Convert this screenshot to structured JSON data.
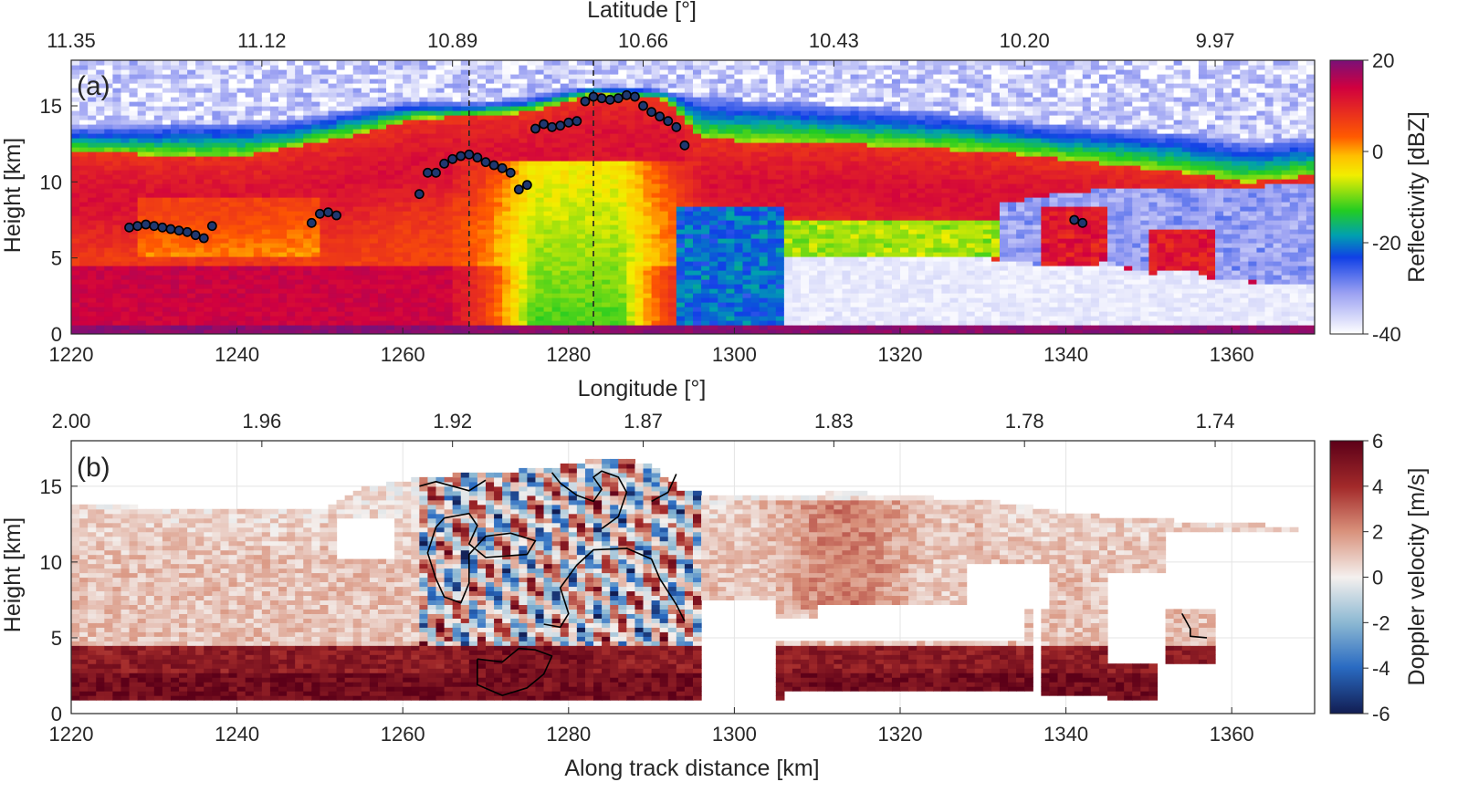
{
  "chart_data": [
    {
      "type": "heatmap",
      "panel_label": "(a)",
      "xlabel": "Longitude [°]",
      "ylabel": "Height [km]",
      "top_axis_label": "Latitude [°]",
      "xlim": [
        1220,
        1370
      ],
      "ylim": [
        0,
        18
      ],
      "x_ticks": [
        1220,
        1240,
        1260,
        1280,
        1300,
        1320,
        1340,
        1360
      ],
      "y_ticks": [
        0,
        5,
        10,
        15
      ],
      "top_ticks": [
        {
          "at": 1220,
          "label": "11.35"
        },
        {
          "at": 1243,
          "label": "11.12"
        },
        {
          "at": 1266,
          "label": "10.89"
        },
        {
          "at": 1289,
          "label": "10.66"
        },
        {
          "at": 1312,
          "label": "10.43"
        },
        {
          "at": 1335,
          "label": "10.20"
        },
        {
          "at": 1358,
          "label": "9.97"
        }
      ],
      "colorbar": {
        "label": "Reflectivity [dBZ]",
        "range": [
          -40,
          20
        ],
        "ticks": [
          20,
          0,
          -20,
          -40
        ]
      },
      "vertical_lines_x": [
        1268,
        1283
      ],
      "points": [
        {
          "x": 1227,
          "y": 7.0
        },
        {
          "x": 1228,
          "y": 7.1
        },
        {
          "x": 1229,
          "y": 7.2
        },
        {
          "x": 1230,
          "y": 7.1
        },
        {
          "x": 1231,
          "y": 7.0
        },
        {
          "x": 1232,
          "y": 6.9
        },
        {
          "x": 1233,
          "y": 6.8
        },
        {
          "x": 1234,
          "y": 6.7
        },
        {
          "x": 1235,
          "y": 6.5
        },
        {
          "x": 1236,
          "y": 6.3
        },
        {
          "x": 1237,
          "y": 7.1
        },
        {
          "x": 1249,
          "y": 7.3
        },
        {
          "x": 1250,
          "y": 7.9
        },
        {
          "x": 1251,
          "y": 8.0
        },
        {
          "x": 1252,
          "y": 7.8
        },
        {
          "x": 1262,
          "y": 9.2
        },
        {
          "x": 1263,
          "y": 10.6
        },
        {
          "x": 1264,
          "y": 10.6
        },
        {
          "x": 1265,
          "y": 11.2
        },
        {
          "x": 1266,
          "y": 11.5
        },
        {
          "x": 1267,
          "y": 11.7
        },
        {
          "x": 1268,
          "y": 11.8
        },
        {
          "x": 1269,
          "y": 11.6
        },
        {
          "x": 1270,
          "y": 11.3
        },
        {
          "x": 1271,
          "y": 11.1
        },
        {
          "x": 1272,
          "y": 10.9
        },
        {
          "x": 1273,
          "y": 10.6
        },
        {
          "x": 1274,
          "y": 9.5
        },
        {
          "x": 1275,
          "y": 9.8
        },
        {
          "x": 1276,
          "y": 13.5
        },
        {
          "x": 1277,
          "y": 13.8
        },
        {
          "x": 1278,
          "y": 13.6
        },
        {
          "x": 1279,
          "y": 13.7
        },
        {
          "x": 1280,
          "y": 13.9
        },
        {
          "x": 1281,
          "y": 14.0
        },
        {
          "x": 1282,
          "y": 15.3
        },
        {
          "x": 1283,
          "y": 15.6
        },
        {
          "x": 1284,
          "y": 15.5
        },
        {
          "x": 1285,
          "y": 15.4
        },
        {
          "x": 1286,
          "y": 15.5
        },
        {
          "x": 1287,
          "y": 15.7
        },
        {
          "x": 1288,
          "y": 15.6
        },
        {
          "x": 1289,
          "y": 15.0
        },
        {
          "x": 1290,
          "y": 14.6
        },
        {
          "x": 1291,
          "y": 14.3
        },
        {
          "x": 1292,
          "y": 14.0
        },
        {
          "x": 1293,
          "y": 13.6
        },
        {
          "x": 1294,
          "y": 12.4
        },
        {
          "x": 1341,
          "y": 7.5
        },
        {
          "x": 1342,
          "y": 7.3
        }
      ]
    },
    {
      "type": "heatmap",
      "panel_label": "(b)",
      "xlabel": "Along track distance [km]",
      "ylabel": "Height [km]",
      "xlim": [
        1220,
        1370
      ],
      "ylim": [
        0,
        18
      ],
      "x_ticks": [
        1220,
        1240,
        1260,
        1280,
        1300,
        1320,
        1340,
        1360
      ],
      "y_ticks": [
        0,
        5,
        10,
        15
      ],
      "top_ticks": [
        {
          "at": 1220,
          "label": "2.00"
        },
        {
          "at": 1243,
          "label": "1.96"
        },
        {
          "at": 1266,
          "label": "1.92"
        },
        {
          "at": 1289,
          "label": "1.87"
        },
        {
          "at": 1312,
          "label": "1.83"
        },
        {
          "at": 1335,
          "label": "1.78"
        },
        {
          "at": 1358,
          "label": "1.74"
        }
      ],
      "colorbar": {
        "label": "Doppler velocity [m/s]",
        "range": [
          -6,
          6
        ],
        "ticks": [
          6,
          4,
          2,
          0,
          -2,
          -4,
          -6
        ]
      },
      "contours": [
        [
          [
            1262,
            15.0
          ],
          [
            1264,
            15.3
          ],
          [
            1266,
            15.0
          ],
          [
            1268,
            14.7
          ],
          [
            1270,
            15.4
          ]
        ],
        [
          [
            1265,
            12.9
          ],
          [
            1268,
            13.2
          ],
          [
            1269,
            12.4
          ],
          [
            1268,
            11.2
          ],
          [
            1270,
            10.3
          ],
          [
            1275,
            10.5
          ],
          [
            1276,
            11.4
          ],
          [
            1273,
            11.9
          ],
          [
            1270,
            11.7
          ],
          [
            1268,
            10.5
          ],
          [
            1268,
            8.6
          ],
          [
            1267,
            7.3
          ],
          [
            1265,
            7.7
          ],
          [
            1264,
            8.9
          ],
          [
            1263,
            10.6
          ],
          [
            1264,
            12.3
          ],
          [
            1265,
            12.9
          ]
        ],
        [
          [
            1277,
            5.9
          ],
          [
            1279,
            5.7
          ],
          [
            1280,
            6.6
          ],
          [
            1279,
            8.3
          ],
          [
            1281,
            9.8
          ],
          [
            1283,
            10.8
          ],
          [
            1287,
            10.9
          ],
          [
            1290,
            10.2
          ],
          [
            1291,
            8.9
          ],
          [
            1293,
            7.2
          ],
          [
            1294,
            6.1
          ]
        ],
        [
          [
            1269,
            3.6
          ],
          [
            1272,
            3.4
          ],
          [
            1274,
            4.3
          ],
          [
            1276,
            4.2
          ],
          [
            1278,
            3.8
          ],
          [
            1277,
            2.6
          ],
          [
            1275,
            1.7
          ],
          [
            1272,
            1.2
          ],
          [
            1269,
            1.9
          ],
          [
            1269,
            3.6
          ]
        ],
        [
          [
            1278,
            15.9
          ],
          [
            1279,
            15.2
          ],
          [
            1281,
            14.4
          ],
          [
            1283,
            14.0
          ],
          [
            1284,
            14.8
          ],
          [
            1283,
            15.6
          ],
          [
            1284,
            16.0
          ],
          [
            1286,
            15.6
          ],
          [
            1287,
            14.6
          ],
          [
            1286,
            13.0
          ],
          [
            1284,
            12.2
          ]
        ],
        [
          [
            1290,
            14.0
          ],
          [
            1292,
            14.6
          ],
          [
            1293,
            15.8
          ]
        ],
        [
          [
            1354,
            6.6
          ],
          [
            1355,
            5.6
          ],
          [
            1355,
            5.1
          ],
          [
            1357,
            5.0
          ]
        ]
      ]
    }
  ]
}
